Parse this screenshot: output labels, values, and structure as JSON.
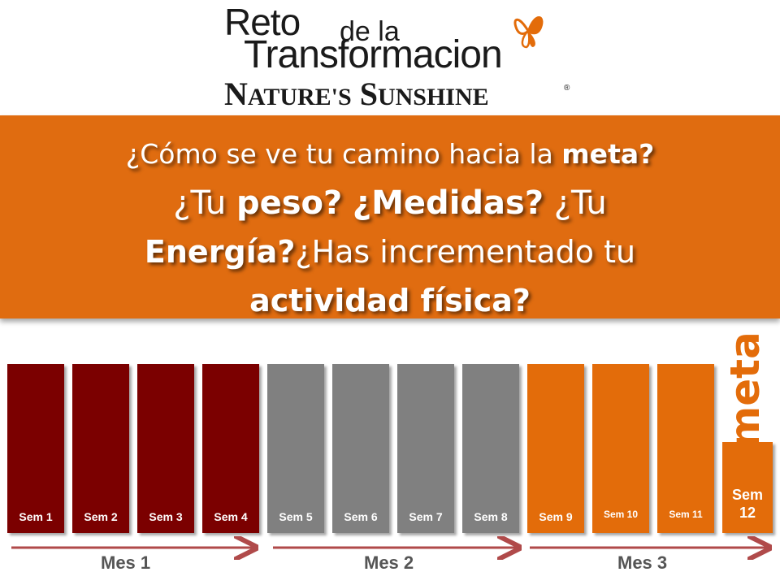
{
  "logo": {
    "line1": "Reto",
    "line1b": "de la",
    "line2": "Transformacion",
    "brand_part1": "N",
    "brand_part2": "ATURE'S",
    "brand_part3": "S",
    "brand_part4": "UNSHINE",
    "registered": "®"
  },
  "banner": {
    "q1_pre": "¿Cómo se ve tu camino hacia la ",
    "q1_bold": "meta?",
    "q2_pre": "¿Tu ",
    "q2_bold1": "peso?",
    "q2_bold2": "¿Medidas?",
    "q2_post": " ¿Tu",
    "q3_bold": "Energía?",
    "q3_post": "¿Has incrementado tu",
    "q4_bold": "actividad física?"
  },
  "weeks": [
    "Sem 1",
    "Sem 2",
    "Sem 3",
    "Sem 4",
    "Sem 5",
    "Sem 6",
    "Sem 7",
    "Sem 8",
    "Sem 9",
    "Sem 10",
    "Sem 11"
  ],
  "goal_week": {
    "line1": "Sem",
    "line2": "12"
  },
  "goal_word": "meta",
  "months": [
    "Mes 1",
    "Mes 2",
    "Mes 3"
  ],
  "colors": {
    "month1": "#7b0000",
    "month2": "#808080",
    "month3": "#e36c0a",
    "banner": "#e06c10",
    "arrow": "#b04a4a"
  }
}
